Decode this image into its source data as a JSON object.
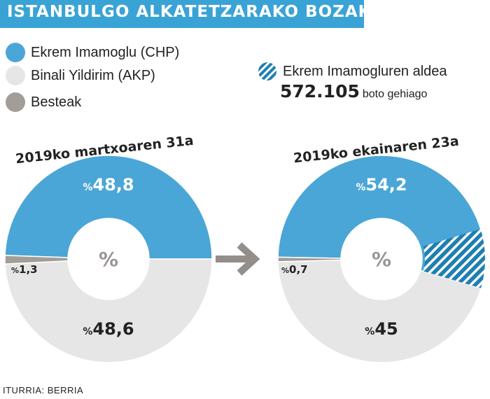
{
  "title": "ISTANBULGO ALKATETZARAKO BOZAK",
  "colors": {
    "imamoglu": "#4aa6d6",
    "yildirim": "#e6e6e6",
    "besteak": "#a39d98",
    "hatch": "#1f7fb2",
    "title_bg": "#3aa3d6",
    "arrow": "#938e89"
  },
  "legend": [
    {
      "label": "Ekrem Imamoglu (CHP)",
      "color": "#4aa6d6"
    },
    {
      "label": "Binali Yildirim (AKP)",
      "color": "#e6e6e6"
    },
    {
      "label": "Besteak",
      "color": "#a39d98"
    }
  ],
  "aldea": {
    "label": "Ekrem Imamogluren aldea",
    "value": "572.105",
    "unit": "boto gehiago"
  },
  "chart_data": [
    {
      "type": "pie",
      "title": "2019ko martxoaren 31a",
      "center_label": "%",
      "series": [
        {
          "name": "Ekrem Imamoglu (CHP)",
          "value": 48.8,
          "label": "48,8"
        },
        {
          "name": "Binali Yildirim (AKP)",
          "value": 48.6,
          "label": "48,6"
        },
        {
          "name": "Besteak",
          "value": 1.3,
          "label": "1,3"
        }
      ]
    },
    {
      "type": "pie",
      "title": "2019ko ekainaren 23a",
      "center_label": "%",
      "series": [
        {
          "name": "Ekrem Imamoglu (CHP)",
          "value": 54.2,
          "label": "54,2"
        },
        {
          "name": "Binali Yildirim (AKP)",
          "value": 45,
          "label": "45"
        },
        {
          "name": "Besteak",
          "value": 0.7,
          "label": "0,7"
        }
      ],
      "margin_value": 9.2
    }
  ],
  "source": "ITURRIA: BERRIA"
}
